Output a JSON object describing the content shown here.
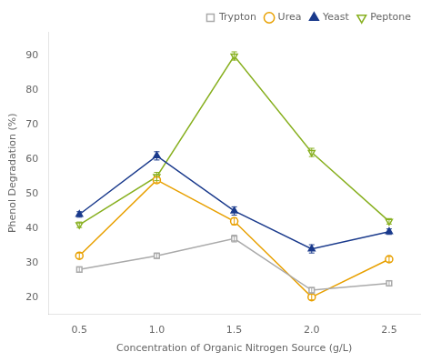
{
  "chart_data": {
    "type": "line",
    "xlabel": "Concentration of Organic Nitrogen Source (g/L)",
    "ylabel": "Phenol Degradation (%)",
    "x": [
      0.5,
      1.0,
      1.5,
      2.0,
      2.5
    ],
    "series": [
      {
        "name": "Trypton",
        "color": "#aaaaaa",
        "marker": "open-square",
        "values": [
          28,
          32,
          37,
          22,
          24
        ],
        "errors": [
          0.8,
          0.8,
          1.0,
          0.8,
          0.8
        ]
      },
      {
        "name": "Urea",
        "color": "#e8a000",
        "marker": "open-circle",
        "values": [
          32,
          54,
          42,
          20,
          31
        ],
        "errors": [
          0.8,
          0.8,
          1.0,
          0.8,
          0.8
        ]
      },
      {
        "name": "Yeast",
        "color": "#1a3a8c",
        "marker": "triangle-up",
        "values": [
          44,
          61,
          45,
          34,
          39
        ],
        "errors": [
          0.8,
          1.2,
          1.2,
          1.2,
          0.8
        ]
      },
      {
        "name": "Peptone",
        "color": "#88b020",
        "marker": "open-triangle-down",
        "values": [
          41,
          55,
          90,
          62,
          42
        ],
        "errors": [
          0.8,
          1.2,
          1.2,
          1.2,
          0.8
        ]
      }
    ],
    "xlim": [
      0.3,
      2.7
    ],
    "xticks": [
      0.5,
      {
        "value": 1.0,
        "label": "1.0"
      },
      1.5,
      {
        "value": 2.0,
        "label": "2.0"
      },
      2.5
    ],
    "ylim": [
      15,
      97
    ],
    "yticks": [
      20,
      30,
      40,
      50,
      60,
      70,
      80,
      90
    ],
    "grid": false,
    "legend": "upper right"
  }
}
